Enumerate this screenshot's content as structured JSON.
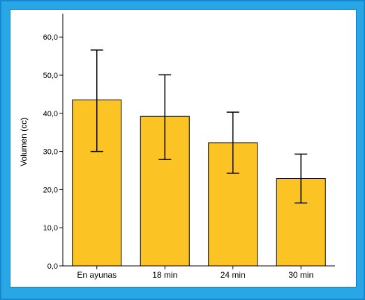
{
  "chart_data": {
    "type": "bar",
    "title": "",
    "xlabel": "",
    "ylabel": "Volumen (cc)",
    "categories": [
      "En ayunas",
      "18 min",
      "24 min",
      "30 min"
    ],
    "values": [
      43.5,
      39.2,
      32.3,
      22.9
    ],
    "error_low": [
      30.0,
      27.9,
      24.3,
      16.5
    ],
    "error_high": [
      56.6,
      50.1,
      40.3,
      29.3
    ],
    "ylim": [
      0,
      65
    ],
    "yticks": [
      0,
      10,
      20,
      30,
      40,
      50,
      60
    ],
    "ytick_labels": [
      "0,0",
      "10,0",
      "20,0",
      "30,0",
      "40,0",
      "50,0",
      "60,0"
    ],
    "grid": false,
    "legend": "none",
    "colors": {
      "bar_fill": "#fbc323",
      "bar_stroke": "#000000",
      "frame": "#29a6e6"
    }
  }
}
